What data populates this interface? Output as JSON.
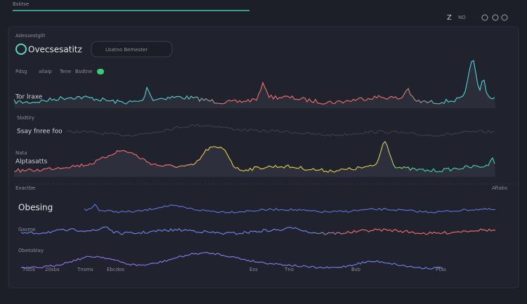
{
  "header": {
    "title": "Bsktse",
    "controls": [
      "NO"
    ]
  },
  "panel": {
    "label": "Adessestglit",
    "title": "Ovecsesatitz",
    "search": "Lbatno Bemester"
  },
  "legend": [
    "Pdsg",
    "allaip",
    "Tene",
    "Bsdtne"
  ],
  "sections": [
    {
      "title": "Tor lraxe",
      "side": "Sbdtiry"
    },
    {
      "title": "Ssay fnree foo",
      "side": "Nata"
    },
    {
      "title": "Alptasatts",
      "side": "Exactbe"
    },
    {
      "title": "Obesing",
      "side": "Gasme"
    },
    {
      "title": "Obetoblay",
      "side": "Aftabs"
    }
  ],
  "footer": [
    "Tlstis",
    "20sbs",
    "Tnsms",
    "Ebcdos",
    "Ess",
    "Tno",
    "Bsb",
    "Ptas"
  ]
}
